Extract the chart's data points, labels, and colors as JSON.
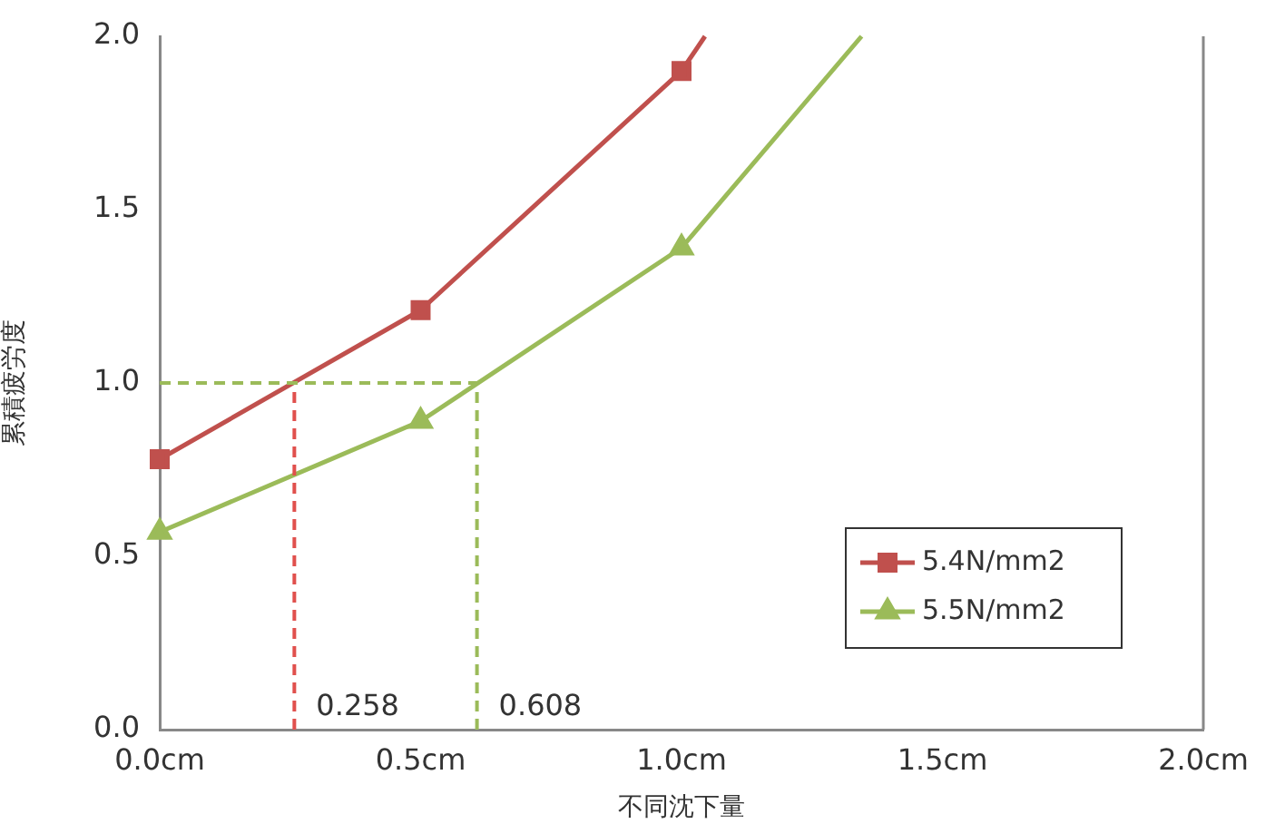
{
  "chart_data": {
    "type": "line",
    "xlabel": "不同沈下量",
    "ylabel": "累積疲労度",
    "xlim": [
      0,
      2
    ],
    "xticks": [
      {
        "value": 0,
        "label": "0.0cm"
      },
      {
        "value": 0.5,
        "label": "0.5cm"
      },
      {
        "value": 1,
        "label": "1.0cm"
      },
      {
        "value": 1.5,
        "label": "1.5cm"
      },
      {
        "value": 2,
        "label": "2.0cm"
      }
    ],
    "ylim": [
      0,
      2
    ],
    "yticks": [
      {
        "value": 0,
        "label": "0.0"
      },
      0.5,
      {
        "value": 1,
        "label": "1.0"
      },
      1.5,
      {
        "value": 2,
        "label": "2.0"
      }
    ],
    "series": [
      {
        "name": "5.4N/mm2",
        "color": "#c0504d",
        "marker": "square",
        "x": [
          0,
          0.5,
          1,
          1.045
        ],
        "values": [
          0.78,
          1.21,
          1.9,
          2
        ]
      },
      {
        "name": "5.5N/mm2",
        "color": "#9bbb59",
        "marker": "triangle",
        "x": [
          0,
          0.5,
          1,
          1.345
        ],
        "values": [
          0.57,
          0.89,
          1.39,
          2
        ]
      }
    ],
    "ref_lines": [
      {
        "axis": "x",
        "value": 0.258,
        "label": "0.258",
        "color": "#e0504d",
        "line_style": "dashed"
      },
      {
        "axis": "x",
        "value": 0.608,
        "label": "0.608",
        "color": "#9bbb59",
        "line_style": "dashed"
      },
      {
        "axis": "y",
        "value": 1,
        "color": "#9bbb59",
        "line_style": "dashed"
      }
    ],
    "grid": false,
    "legend": "bottom right",
    "line_style": "solid"
  }
}
